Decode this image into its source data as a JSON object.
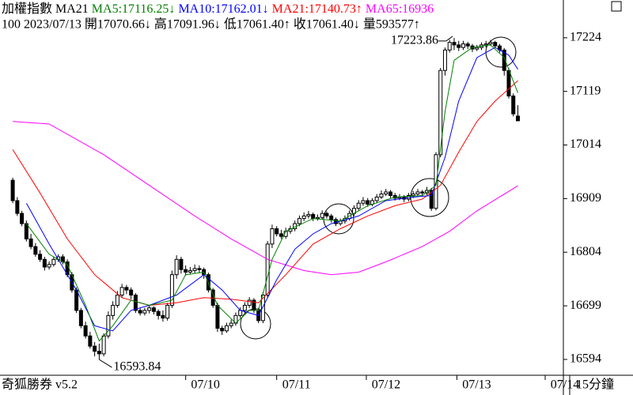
{
  "chart_data": {
    "type": "candlestick",
    "header": [
      {
        "text": "加權指數 MA21",
        "color": "#000000"
      },
      {
        "text": "MA5:17116.25↓",
        "color": "#008000"
      },
      {
        "text": "MA10:17162.01↓",
        "color": "#0000ff"
      },
      {
        "text": "MA21:17140.73↑",
        "color": "#ff0000"
      },
      {
        "text": "MA65:16936",
        "color": "#ff00ff"
      }
    ],
    "subheader": "100 2023/07/13 開17070.66↓ 高17091.96↓ 低17061.40↑ 收17061.40↓ 量593577↑",
    "footer_left": "奇狐勝券 v5.2",
    "footer_right": "15分鐘",
    "ylim": [
      16563,
      17298
    ],
    "yticks": [
      16594,
      16699,
      16804,
      16909,
      17014,
      17119,
      17224
    ],
    "xlim": [
      -2.8,
      121
    ],
    "xticks": [
      {
        "value": 38,
        "label": "07/10"
      },
      {
        "value": 58,
        "label": "07/11"
      },
      {
        "value": 77.7,
        "label": "07/12"
      },
      {
        "value": 97.6,
        "label": "07/13"
      },
      {
        "value": 117,
        "label": "07/14"
      }
    ],
    "annotations": [
      {
        "label": "17223.86",
        "bar": 97,
        "field": 1
      },
      {
        "label": "16593.84",
        "bar": 19,
        "field": 2
      }
    ],
    "ohlc": [
      [
        16945,
        16950,
        16900,
        16905
      ],
      [
        16905,
        16912,
        16875,
        16880
      ],
      [
        16880,
        16885,
        16855,
        16860
      ],
      [
        16860,
        16866,
        16825,
        16830
      ],
      [
        16830,
        16840,
        16810,
        16815
      ],
      [
        16815,
        16822,
        16795,
        16800
      ],
      [
        16800,
        16808,
        16785,
        16790
      ],
      [
        16790,
        16795,
        16768,
        16775
      ],
      [
        16775,
        16786,
        16770,
        16780
      ],
      [
        16780,
        16795,
        16776,
        16790
      ],
      [
        16790,
        16800,
        16785,
        16795
      ],
      [
        16795,
        16800,
        16780,
        16785
      ],
      [
        16785,
        16790,
        16755,
        16760
      ],
      [
        16760,
        16765,
        16725,
        16730
      ],
      [
        16730,
        16735,
        16685,
        16690
      ],
      [
        16690,
        16695,
        16655,
        16660
      ],
      [
        16660,
        16668,
        16635,
        16640
      ],
      [
        16640,
        16648,
        16615,
        16620
      ],
      [
        16620,
        16628,
        16600,
        16610
      ],
      [
        16610,
        16625,
        16593.84,
        16605
      ],
      [
        16605,
        16645,
        16600,
        16640
      ],
      [
        16640,
        16688,
        16635,
        16680
      ],
      [
        16680,
        16708,
        16672,
        16700
      ],
      [
        16700,
        16728,
        16695,
        16720
      ],
      [
        16720,
        16742,
        16715,
        16735
      ],
      [
        16735,
        16740,
        16722,
        16730
      ],
      [
        16730,
        16735,
        16712,
        16720
      ],
      [
        16720,
        16724,
        16685,
        16690
      ],
      [
        16690,
        16695,
        16680,
        16685
      ],
      [
        16685,
        16695,
        16680,
        16690
      ],
      [
        16690,
        16700,
        16684,
        16695
      ],
      [
        16695,
        16698,
        16682,
        16688
      ],
      [
        16688,
        16692,
        16672,
        16680
      ],
      [
        16680,
        16690,
        16668,
        16675
      ],
      [
        16675,
        16705,
        16670,
        16700
      ],
      [
        16700,
        16768,
        16695,
        16760
      ],
      [
        16760,
        16798,
        16752,
        16790
      ],
      [
        16790,
        16795,
        16762,
        16770
      ],
      [
        16770,
        16778,
        16758,
        16765
      ],
      [
        16765,
        16775,
        16760,
        16768
      ],
      [
        16768,
        16780,
        16762,
        16772
      ],
      [
        16772,
        16778,
        16764,
        16770
      ],
      [
        16770,
        16774,
        16752,
        16760
      ],
      [
        16760,
        16764,
        16725,
        16730
      ],
      [
        16730,
        16734,
        16695,
        16700
      ],
      [
        16700,
        16705,
        16648,
        16655
      ],
      [
        16655,
        16660,
        16642,
        16650
      ],
      [
        16650,
        16666,
        16646,
        16660
      ],
      [
        16660,
        16672,
        16655,
        16665
      ],
      [
        16665,
        16686,
        16660,
        16680
      ],
      [
        16680,
        16696,
        16675,
        16690
      ],
      [
        16690,
        16706,
        16685,
        16700
      ],
      [
        16700,
        16716,
        16695,
        16710
      ],
      [
        16710,
        16714,
        16685,
        16690
      ],
      [
        16690,
        16695,
        16665,
        16670
      ],
      [
        16670,
        16726,
        16665,
        16720
      ],
      [
        16720,
        16826,
        16715,
        16820
      ],
      [
        16820,
        16858,
        16812,
        16850
      ],
      [
        16850,
        16855,
        16835,
        16840
      ],
      [
        16840,
        16848,
        16830,
        16835
      ],
      [
        16835,
        16852,
        16830,
        16845
      ],
      [
        16845,
        16856,
        16840,
        16850
      ],
      [
        16850,
        16866,
        16845,
        16860
      ],
      [
        16860,
        16876,
        16855,
        16870
      ],
      [
        16870,
        16882,
        16865,
        16875
      ],
      [
        16875,
        16885,
        16870,
        16878
      ],
      [
        16878,
        16882,
        16865,
        16870
      ],
      [
        16870,
        16878,
        16866,
        16872
      ],
      [
        16872,
        16886,
        16868,
        16880
      ],
      [
        16880,
        16884,
        16870,
        16875
      ],
      [
        16875,
        16879,
        16862,
        16868
      ],
      [
        16868,
        16872,
        16855,
        16860
      ],
      [
        16860,
        16870,
        16856,
        16865
      ],
      [
        16865,
        16876,
        16860,
        16870
      ],
      [
        16870,
        16886,
        16866,
        16880
      ],
      [
        16880,
        16896,
        16875,
        16890
      ],
      [
        16890,
        16906,
        16885,
        16900
      ],
      [
        16900,
        16912,
        16895,
        16905
      ],
      [
        16905,
        16910,
        16893,
        16898
      ],
      [
        16898,
        16910,
        16894,
        16905
      ],
      [
        16905,
        16918,
        16900,
        16912
      ],
      [
        16912,
        16925,
        16908,
        16918
      ],
      [
        16918,
        16928,
        16914,
        16922
      ],
      [
        16922,
        16926,
        16910,
        16915
      ],
      [
        16915,
        16920,
        16905,
        16910
      ],
      [
        16910,
        16918,
        16906,
        16912
      ],
      [
        16912,
        16916,
        16902,
        16908
      ],
      [
        16908,
        16920,
        16904,
        16915
      ],
      [
        16915,
        16924,
        16910,
        16918
      ],
      [
        16918,
        16928,
        16914,
        16922
      ],
      [
        16922,
        16926,
        16915,
        16920
      ],
      [
        16920,
        16932,
        16916,
        16925
      ],
      [
        16925,
        16930,
        16885,
        16890
      ],
      [
        16890,
        17000,
        16886,
        16995
      ],
      [
        16995,
        17165,
        16990,
        17160
      ],
      [
        17160,
        17205,
        17150,
        17200
      ],
      [
        17200,
        17220,
        17195,
        17215
      ],
      [
        17215,
        17223.86,
        17200,
        17210
      ],
      [
        17210,
        17218,
        17198,
        17205
      ],
      [
        17205,
        17218,
        17200,
        17212
      ],
      [
        17212,
        17216,
        17202,
        17208
      ],
      [
        17208,
        17212,
        17196,
        17202
      ],
      [
        17202,
        17210,
        17198,
        17205
      ],
      [
        17205,
        17215,
        17200,
        17210
      ],
      [
        17210,
        17218,
        17205,
        17212
      ],
      [
        17212,
        17220,
        17208,
        17215
      ],
      [
        17215,
        17218,
        17204,
        17208
      ],
      [
        17208,
        17212,
        17195,
        17200
      ],
      [
        17200,
        17204,
        17150,
        17160
      ],
      [
        17160,
        17165,
        17105,
        17110
      ],
      [
        17110,
        17115,
        17070,
        17075
      ],
      [
        17070.66,
        17091.96,
        17061.4,
        17061.4
      ]
    ],
    "series": [
      {
        "name": "MA65",
        "color": "#ff00ff",
        "x": [
          0,
          8,
          20,
          30,
          40,
          48,
          56,
          64,
          70,
          76,
          82,
          90,
          96,
          102,
          111
        ],
        "values": [
          17060,
          17055,
          16995,
          16935,
          16875,
          16830,
          16790,
          16768,
          16760,
          16765,
          16785,
          16815,
          16845,
          16885,
          16934
        ]
      },
      {
        "name": "MA21",
        "color": "#ff0000",
        "x": [
          0,
          6,
          12,
          18,
          24,
          30,
          36,
          42,
          48,
          54,
          60,
          66,
          72,
          78,
          84,
          90,
          94,
          98,
          102,
          106,
          111
        ],
        "values": [
          17005,
          16920,
          16830,
          16760,
          16715,
          16700,
          16705,
          16715,
          16712,
          16705,
          16760,
          16820,
          16850,
          16875,
          16895,
          16908,
          16935,
          17000,
          17060,
          17100,
          17140
        ]
      },
      {
        "name": "MA10",
        "color": "#0000ff",
        "x": [
          3,
          8,
          14,
          18,
          22,
          26,
          30,
          36,
          42,
          46,
          50,
          54,
          58,
          62,
          66,
          70,
          76,
          82,
          88,
          92,
          95,
          98,
          102,
          106,
          109,
          111
        ],
        "values": [
          16900,
          16820,
          16730,
          16660,
          16650,
          16690,
          16700,
          16720,
          16760,
          16730,
          16690,
          16680,
          16750,
          16810,
          16840,
          16860,
          16875,
          16905,
          16912,
          16915,
          16990,
          17100,
          17185,
          17205,
          17190,
          17162
        ]
      },
      {
        "name": "MA5",
        "color": "#008000",
        "x": [
          3,
          8,
          12,
          16,
          19,
          22,
          26,
          30,
          35,
          38,
          42,
          45,
          49,
          52,
          54,
          57,
          60,
          66,
          72,
          78,
          84,
          90,
          93,
          95,
          97,
          101,
          105,
          108,
          111
        ],
        "values": [
          16860,
          16800,
          16780,
          16700,
          16630,
          16660,
          16710,
          16700,
          16710,
          16760,
          16765,
          16700,
          16665,
          16690,
          16690,
          16790,
          16845,
          16870,
          16865,
          16895,
          16912,
          16915,
          16935,
          17080,
          17180,
          17205,
          17210,
          17185,
          17116
        ]
      }
    ]
  }
}
